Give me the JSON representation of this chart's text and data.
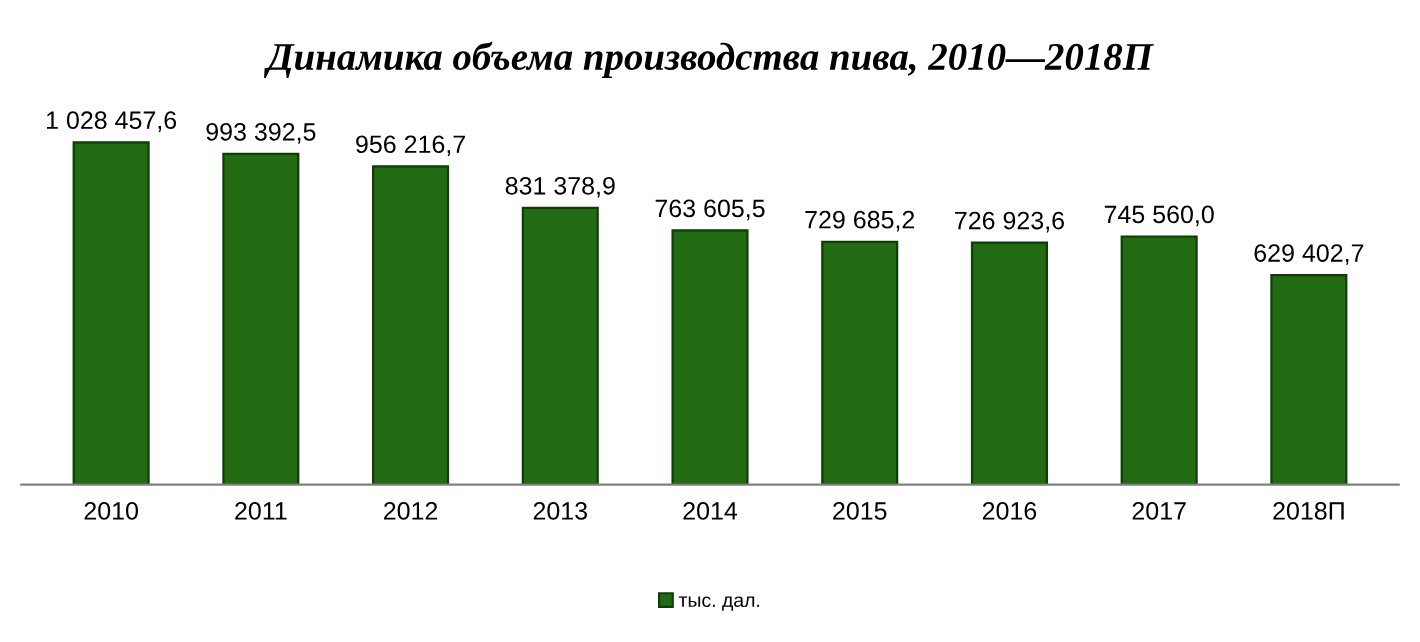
{
  "chart_data": {
    "type": "bar",
    "title": "Динамика объема производства пива, 2010—2018П",
    "categories": [
      "2010",
      "2011",
      "2012",
      "2013",
      "2014",
      "2015",
      "2016",
      "2017",
      "2018П"
    ],
    "series": [
      {
        "name": "тыс. дал.",
        "color": "#226b12",
        "values": [
          1028457.6,
          993392.5,
          956216.7,
          831378.9,
          763605.5,
          729685.2,
          726923.6,
          745560.0,
          629402.7
        ],
        "value_labels": [
          "1 028 457,6",
          "993 392,5",
          "956 216,7",
          "831 378,9",
          "763 605,5",
          "729 685,2",
          "726 923,6",
          "745 560,0",
          "629 402,7"
        ]
      }
    ],
    "tick_labels": "x",
    "grid": false,
    "legend": "bottom"
  }
}
